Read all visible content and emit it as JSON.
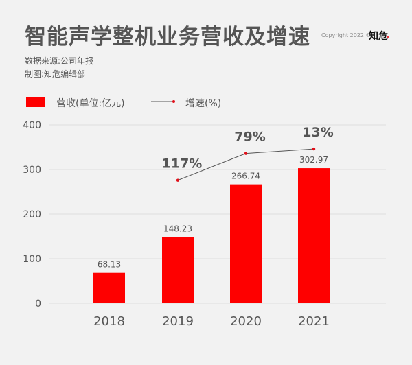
{
  "header": {
    "title": "智能声学整机业务营收及增速",
    "copyright": "Copyright 2022 ©",
    "brand": "知危"
  },
  "source": "数据来源:公司年报",
  "credit": "制图:知危编辑部",
  "colors": {
    "bar": "#fe0000",
    "line": "#555555",
    "point": "#e0101a",
    "grid": "#dddddd"
  },
  "chart_data": {
    "type": "bar",
    "title": "智能声学整机业务营收及增速",
    "categories": [
      "2018",
      "2019",
      "2020",
      "2021"
    ],
    "series": [
      {
        "name": "营收(单位:亿元)",
        "type": "bar",
        "values": [
          68.13,
          148.23,
          266.74,
          302.97
        ],
        "labels": [
          "68.13",
          "148.23",
          "266.74",
          "302.97"
        ]
      },
      {
        "name": "增速(%)",
        "type": "line",
        "values": [
          null,
          117,
          79,
          13
        ],
        "labels": [
          "",
          "117%",
          "79%",
          "13%"
        ]
      }
    ],
    "yticks": [
      "0",
      "100",
      "200",
      "300",
      "400"
    ],
    "ylim": [
      0,
      400
    ],
    "xlabel": "",
    "ylabel": "",
    "grid": true,
    "legend": "top-left"
  }
}
